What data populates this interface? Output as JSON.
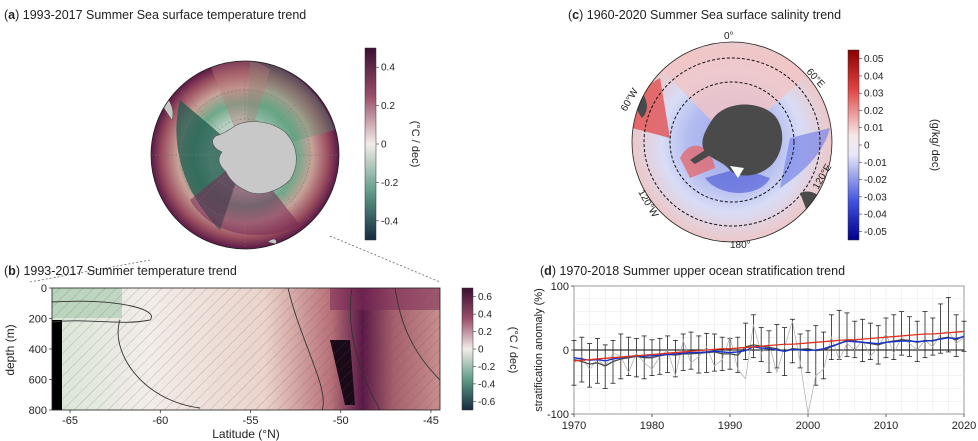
{
  "panels": {
    "a": {
      "letter": "a",
      "title": "1993-2017 Summer Sea surface temperature trend"
    },
    "b": {
      "letter": "b",
      "title": "1993-2017 Summer temperature trend"
    },
    "c": {
      "letter": "c",
      "title": "1960-2020 Summer Sea surface salinity trend"
    },
    "d": {
      "letter": "d",
      "title": "1970-2018 Summer upper ocean stratification trend"
    }
  },
  "colors": {
    "warm": "#5a1846",
    "warm_mid": "#c48a86",
    "neutral": "#f3ece8",
    "cool_mid": "#6fa98a",
    "cool": "#17334a",
    "sal_pos": "#b00000",
    "sal_neg": "#0000b0",
    "land_dark": "#4a4a4a",
    "land_light": "#c8c8c8",
    "trend_line": "#e03020",
    "mean_line": "#1030d0",
    "alt_line": "#aaaaaa"
  },
  "chart_data": [
    {
      "id": "a",
      "type": "heatmap",
      "title": "1993-2017 Summer Sea surface temperature trend",
      "projection": "south polar stereographic",
      "colorbar": {
        "label": "(°C / dec)",
        "ticks": [
          "0.4",
          "0.2",
          "0",
          "-0.2",
          "-0.4"
        ],
        "range": [
          -0.5,
          0.5
        ]
      }
    },
    {
      "id": "b",
      "type": "heatmap",
      "title": "1993-2017 Summer temperature trend",
      "xlabel": "Latitude (°N)",
      "ylabel": "depth (m)",
      "xlim": [
        -66,
        -44.5
      ],
      "ylim": [
        800,
        0
      ],
      "xticks": [
        "-65",
        "-60",
        "-55",
        "-50",
        "-45"
      ],
      "yticks": [
        "0",
        "200",
        "400",
        "600",
        "800"
      ],
      "colorbar": {
        "label": "(°C / dec)",
        "ticks": [
          "0.6",
          "0.4",
          "0.2",
          "0",
          "-0.2",
          "-0.4",
          "-0.6"
        ],
        "range": [
          -0.7,
          0.7
        ]
      }
    },
    {
      "id": "c",
      "type": "heatmap",
      "title": "1960-2020 Summer Sea surface salinity trend",
      "projection": "south polar stereographic",
      "map_labels": [
        "0°",
        "60°E",
        "120°E",
        "180°",
        "120°W",
        "60°W"
      ],
      "colorbar": {
        "label": "(g/kg/ dec)",
        "ticks": [
          "0.05",
          "0.04",
          "0.03",
          "0.02",
          "0.01",
          "0",
          "-0.01",
          "-0.02",
          "-0.03",
          "-0.04",
          "-0.05"
        ],
        "range": [
          -0.05,
          0.05
        ]
      }
    },
    {
      "id": "d",
      "type": "line",
      "title": "1970-2018 Summer upper ocean stratification trend",
      "xlabel": "",
      "ylabel": "stratification anomaly (%)",
      "xlim": [
        1970,
        2020
      ],
      "ylim": [
        -100,
        100
      ],
      "xticks": [
        "1970",
        "1980",
        "1990",
        "2000",
        "2010",
        "2020"
      ],
      "yticks": [
        "100",
        "0",
        "-100"
      ],
      "x": [
        1970,
        1971,
        1972,
        1973,
        1974,
        1975,
        1976,
        1977,
        1978,
        1979,
        1980,
        1981,
        1982,
        1983,
        1984,
        1985,
        1986,
        1987,
        1988,
        1989,
        1990,
        1991,
        1992,
        1993,
        1994,
        1995,
        1996,
        1997,
        1998,
        1999,
        2000,
        2001,
        2002,
        2003,
        2004,
        2005,
        2006,
        2007,
        2008,
        2009,
        2010,
        2011,
        2012,
        2013,
        2014,
        2015,
        2016,
        2017,
        2018,
        2019,
        2020
      ],
      "series": [
        {
          "values": [
            -15,
            -18,
            -22,
            -20,
            -25,
            -18,
            -14,
            -12,
            -10,
            -12,
            -12,
            -9,
            -7,
            -8,
            -6,
            -6,
            -5,
            -4,
            -3,
            -6,
            -6,
            -8,
            5,
            8,
            6,
            4,
            2,
            -2,
            2,
            1,
            2,
            -1,
            0,
            5,
            10,
            15,
            14,
            12,
            10,
            8,
            12,
            14,
            16,
            15,
            12,
            15,
            14,
            18,
            20,
            16,
            22
          ],
          "err_lo": [
            -55,
            -50,
            -58,
            -52,
            -60,
            -52,
            -45,
            -40,
            -42,
            -45,
            -40,
            -38,
            -35,
            -42,
            -32,
            -30,
            -36,
            -35,
            -33,
            -32,
            -30,
            -35,
            -15,
            -12,
            -18,
            -35,
            -28,
            -40,
            -20,
            -28,
            -35,
            -55,
            -45,
            -15,
            -15,
            -10,
            -12,
            -18,
            -15,
            -22,
            -12,
            -15,
            -8,
            -10,
            -18,
            -12,
            -8,
            -5,
            -3,
            -10,
            -2
          ],
          "err_hi": [
            15,
            20,
            10,
            18,
            8,
            15,
            25,
            20,
            18,
            22,
            16,
            18,
            22,
            15,
            25,
            28,
            22,
            26,
            25,
            20,
            18,
            20,
            42,
            55,
            35,
            30,
            40,
            35,
            48,
            25,
            30,
            38,
            28,
            55,
            62,
            58,
            45,
            48,
            42,
            38,
            50,
            55,
            60,
            52,
            45,
            60,
            50,
            72,
            82,
            55,
            45
          ]
        },
        {
          "values": [
            -12,
            -14,
            -16,
            -15,
            -17,
            -14,
            -12,
            -10,
            -9,
            -10,
            -9,
            -8,
            -7,
            -6,
            -5,
            -4,
            -4,
            -3,
            -2,
            -3,
            -4,
            -3,
            -1,
            5,
            3,
            2,
            0,
            -2,
            1,
            0,
            -1,
            0,
            2,
            6,
            10,
            14,
            13,
            12,
            11,
            10,
            12,
            13,
            14,
            14,
            13,
            14,
            15,
            17,
            19,
            18,
            21
          ]
        },
        {
          "values": [
            -20,
            -10,
            -30,
            -15,
            -25,
            -5,
            -10,
            -35,
            -5,
            -20,
            -30,
            -10,
            0,
            -40,
            15,
            -20,
            -10,
            5,
            -25,
            -15,
            20,
            -30,
            -45,
            40,
            -5,
            10,
            -35,
            5,
            45,
            -20,
            -100,
            -40,
            -30,
            20,
            -15,
            10,
            0,
            15,
            -10,
            5,
            25,
            -5,
            20,
            10,
            0,
            15,
            5,
            25,
            30,
            10,
            20
          ]
        },
        {
          "values": [
            -17,
            -16,
            -15,
            -14,
            -13,
            -12,
            -11,
            -10,
            -9,
            -8,
            -7,
            -6,
            -5,
            -4,
            -3,
            -2,
            -1,
            0,
            1,
            2,
            2,
            3,
            4,
            5,
            6,
            7,
            8,
            9,
            9,
            10,
            11,
            12,
            13,
            14,
            15,
            16,
            16,
            17,
            18,
            19,
            20,
            21,
            22,
            23,
            24,
            25,
            25,
            26,
            27,
            28,
            29
          ]
        }
      ]
    }
  ]
}
